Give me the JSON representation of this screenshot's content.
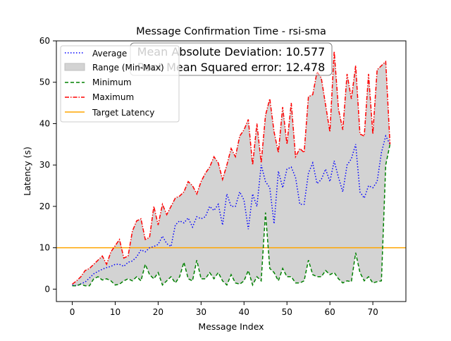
{
  "chart_data": {
    "type": "line",
    "title": "Message Confirmation Time - rsi-sma",
    "xlabel": "Message Index",
    "ylabel": "Latency (s)",
    "xlim": [
      -3.7,
      77.7
    ],
    "ylim": [
      -3,
      60
    ],
    "xticks": [
      0,
      10,
      20,
      30,
      40,
      50,
      60,
      70
    ],
    "yticks": [
      0,
      10,
      20,
      30,
      40,
      50,
      60
    ],
    "grid": false,
    "legend_position": "upper-left",
    "annotation_lines": [
      "Mean Absolute Deviation: 10.577",
      "Root Mean Squared error: 12.478"
    ],
    "target_latency": 10,
    "x": [
      0,
      1,
      2,
      3,
      4,
      5,
      6,
      7,
      8,
      9,
      10,
      11,
      12,
      13,
      14,
      15,
      16,
      17,
      18,
      19,
      20,
      21,
      22,
      23,
      24,
      25,
      26,
      27,
      28,
      29,
      30,
      31,
      32,
      33,
      34,
      35,
      36,
      37,
      38,
      39,
      40,
      41,
      42,
      43,
      44,
      45,
      46,
      47,
      48,
      49,
      50,
      51,
      52,
      53,
      54,
      55,
      56,
      57,
      58,
      59,
      60,
      61,
      62,
      63,
      64,
      65,
      66,
      67,
      68,
      69,
      70,
      71,
      72,
      73,
      74
    ],
    "series": [
      {
        "name": "Average",
        "color": "#0000ff",
        "style": "dotted",
        "values": [
          1.0,
          0.8,
          1.3,
          1.7,
          2.7,
          3.7,
          4.3,
          4.8,
          5.2,
          5.5,
          6.0,
          6.0,
          5.5,
          6.5,
          6.8,
          7.8,
          9.5,
          9.0,
          10.0,
          10.3,
          10.8,
          12.8,
          11.0,
          10.3,
          15.5,
          16.5,
          16.0,
          17.2,
          15.0,
          17.5,
          17.0,
          17.5,
          20.0,
          19.0,
          20.5,
          15.5,
          23.0,
          20.0,
          20.0,
          23.5,
          21.5,
          14.5,
          23.0,
          20.0,
          30.0,
          26.0,
          24.5,
          15.8,
          28.5,
          24.5,
          29.0,
          29.5,
          27.0,
          20.5,
          20.5,
          28.0,
          30.5,
          25.5,
          26.5,
          29.0,
          26.0,
          31.0,
          27.0,
          23.5,
          30.0,
          31.5,
          35.0,
          23.5,
          22.0,
          25.0,
          24.5,
          26.0,
          33.0,
          37.0,
          35.0
        ]
      },
      {
        "name": "Minimum",
        "color": "#008000",
        "style": "dashed",
        "values": [
          0.8,
          0.8,
          1.2,
          0.8,
          0.8,
          2.5,
          3.0,
          2.2,
          2.5,
          2.0,
          1.0,
          1.2,
          2.0,
          2.5,
          2.0,
          3.0,
          2.0,
          6.0,
          3.5,
          2.5,
          4.0,
          1.0,
          2.0,
          3.0,
          1.5,
          3.0,
          6.5,
          2.5,
          2.0,
          7.0,
          2.5,
          2.5,
          4.0,
          2.5,
          4.0,
          2.0,
          1.0,
          3.5,
          1.5,
          1.2,
          2.0,
          4.5,
          1.0,
          3.0,
          2.0,
          18.5,
          5.0,
          4.0,
          2.0,
          5.0,
          3.0,
          3.0,
          1.5,
          1.5,
          2.0,
          7.0,
          3.5,
          3.0,
          3.0,
          4.5,
          3.5,
          4.0,
          2.5,
          1.5,
          2.0,
          1.8,
          8.8,
          4.0,
          2.0,
          3.0,
          1.5,
          1.8,
          2.0,
          30.0,
          35.0
        ]
      },
      {
        "name": "Maximum",
        "color": "#ff0000",
        "style": "dashdot",
        "values": [
          1.2,
          2.0,
          3.0,
          4.5,
          5.0,
          6.0,
          7.0,
          8.0,
          6.0,
          9.0,
          10.5,
          12.0,
          7.5,
          8.0,
          14.0,
          16.5,
          17.0,
          12.0,
          12.5,
          20.0,
          15.5,
          20.5,
          18.0,
          20.0,
          22.0,
          22.5,
          23.5,
          26.0,
          25.0,
          23.0,
          26.0,
          28.0,
          29.5,
          32.0,
          30.5,
          26.5,
          30.0,
          34.0,
          32.0,
          37.0,
          38.5,
          41.0,
          30.0,
          40.0,
          30.5,
          42.0,
          46.0,
          38.0,
          33.0,
          44.0,
          35.0,
          45.0,
          32.0,
          34.0,
          33.0,
          46.5,
          47.0,
          52.5,
          51.0,
          44.5,
          38.0,
          57.5,
          43.5,
          38.5,
          52.0,
          46.0,
          54.0,
          37.5,
          37.0,
          52.0,
          37.5,
          53.0,
          54.0,
          55.0,
          35.0
        ]
      }
    ],
    "range_series": {
      "name": "Range (Min-Max)",
      "color": "#d3d3d3"
    },
    "target_series": {
      "name": "Target Latency",
      "color": "#ffa500"
    }
  }
}
